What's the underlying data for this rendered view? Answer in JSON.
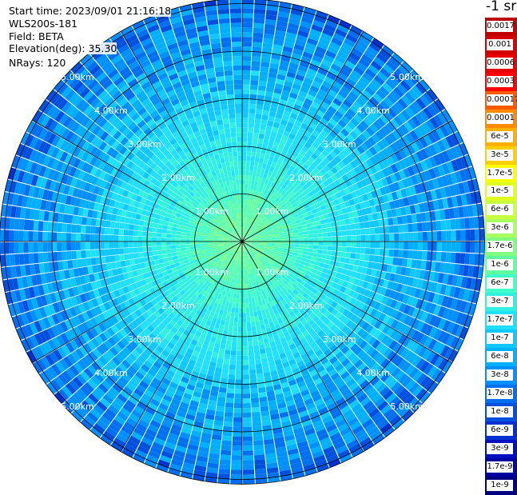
{
  "info": {
    "start_time": "Start time: 2023/09/01 21:16:18",
    "instrument": "WLS200s-181",
    "field": "Field: BETA",
    "elevation": "Elevation(deg): 35.30",
    "nrays": "NRays: 120"
  },
  "chart_data": {
    "type": "heatmap",
    "projection": "polar (PPI scan)",
    "field": "BETA",
    "nrays": 120,
    "range_ring_labels": [
      "1.00km",
      "2.00km",
      "3.00km",
      "4.00km",
      "5.00km"
    ],
    "range_rings_km": [
      1,
      2,
      3,
      4,
      5
    ],
    "max_range_km": 5.1,
    "azimuth_spokes_deg": [
      0,
      30,
      60,
      90,
      120,
      150,
      180,
      210,
      240,
      270,
      300,
      330
    ],
    "colorbar_title": "-1 sr",
    "colorbar_labels": [
      "0.0017",
      "0.001",
      "0.0006",
      "0.0003",
      "0.00017",
      "0.0001",
      "6e-5",
      "3e-5",
      "1.7e-5",
      "1e-5",
      "6e-6",
      "3e-6",
      "1.7e-6",
      "1e-6",
      "6e-7",
      "3e-7",
      "1.7e-7",
      "1e-7",
      "6e-8",
      "3e-8",
      "1.7e-8",
      "1e-8",
      "6e-9",
      "3e-9",
      "1.7e-9",
      "1e-9"
    ],
    "colorbar_colors": [
      "#c00000",
      "#d40000",
      "#e80000",
      "#ff0000",
      "#ff5a00",
      "#ff8c00",
      "#ffb000",
      "#ffd000",
      "#ffff00",
      "#e0ff20",
      "#c8ff40",
      "#a8ff60",
      "#80ff80",
      "#60ffa0",
      "#40ffc8",
      "#30f0e0",
      "#20e0ff",
      "#10c8ff",
      "#00b0ff",
      "#0090ff",
      "#0070f0",
      "#0050e0",
      "#0030d0",
      "#0010c0",
      "#0000a0",
      "#000080"
    ],
    "approx_value_by_range_km": [
      {
        "range_km": 0.5,
        "value": "1e-6"
      },
      {
        "range_km": 1.5,
        "value": "3e-7"
      },
      {
        "range_km": 2.5,
        "value": "1.7e-7"
      },
      {
        "range_km": 3.5,
        "value": "6e-8"
      },
      {
        "range_km": 4.5,
        "value": "3e-8"
      }
    ]
  }
}
